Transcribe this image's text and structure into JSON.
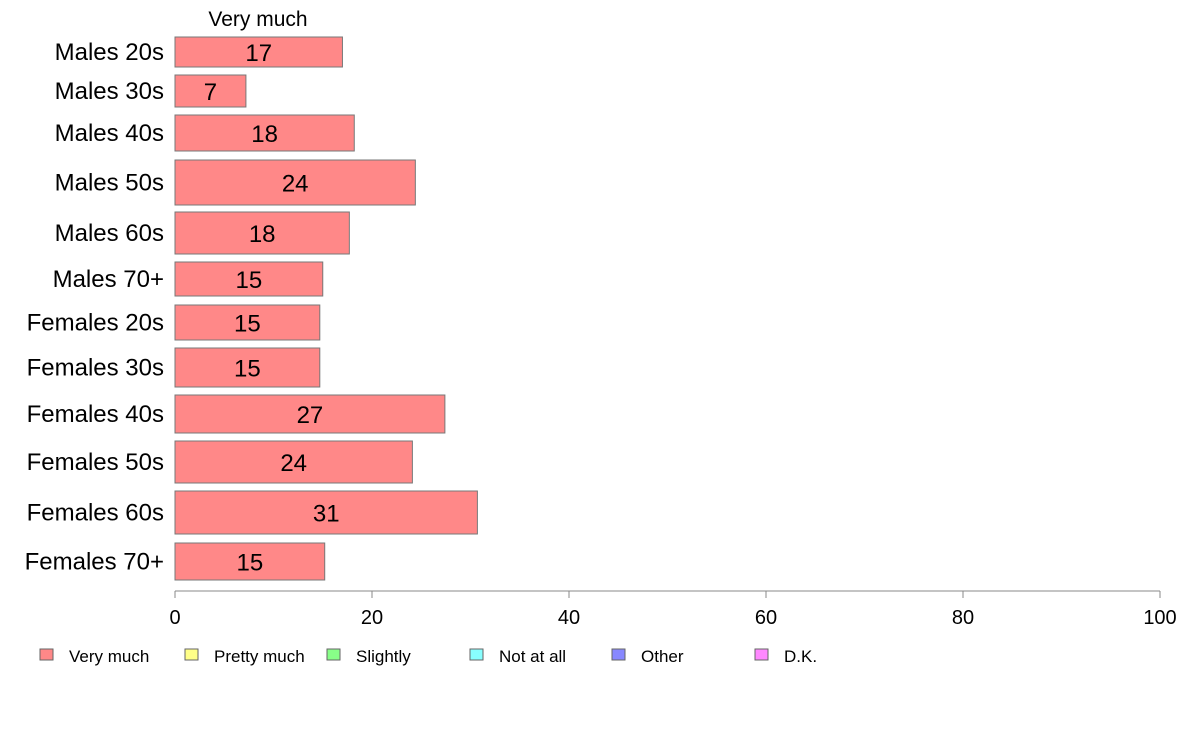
{
  "chart_data": {
    "type": "bar",
    "orientation": "horizontal",
    "stacked": true,
    "categories": [
      "Males 20s",
      "Males 30s",
      "Males 40s",
      "Males 50s",
      "Males 60s",
      "Males 70+",
      "Females 20s",
      "Females 30s",
      "Females 40s",
      "Females 50s",
      "Females 60s",
      "Females 70+"
    ],
    "series": [
      {
        "name": "Very much",
        "color": "#ff8888",
        "values": [
          17,
          7.2,
          18.2,
          24.4,
          17.7,
          15,
          14.7,
          14.7,
          27.4,
          24.1,
          30.7,
          15.2
        ],
        "labels": [
          "17",
          "7",
          "18",
          "24",
          "18",
          "15",
          "15",
          "15",
          "27",
          "24",
          "31",
          "15"
        ]
      }
    ],
    "column_header": "Very much",
    "legend": [
      {
        "name": "Very much",
        "color": "#ff8888"
      },
      {
        "name": "Pretty much",
        "color": "#ffff88"
      },
      {
        "name": "Slightly",
        "color": "#88ff88"
      },
      {
        "name": "Not at all",
        "color": "#88ffff"
      },
      {
        "name": "Other",
        "color": "#8888ff"
      },
      {
        "name": "D.K.",
        "color": "#ff88ff"
      }
    ],
    "legend_position": "bottom",
    "xlim": [
      0,
      100
    ],
    "xticks": [
      0,
      20,
      40,
      60,
      80,
      100
    ],
    "xtick_labels": [
      "0",
      "20",
      "40",
      "60",
      "80",
      "100"
    ],
    "grid": false
  }
}
